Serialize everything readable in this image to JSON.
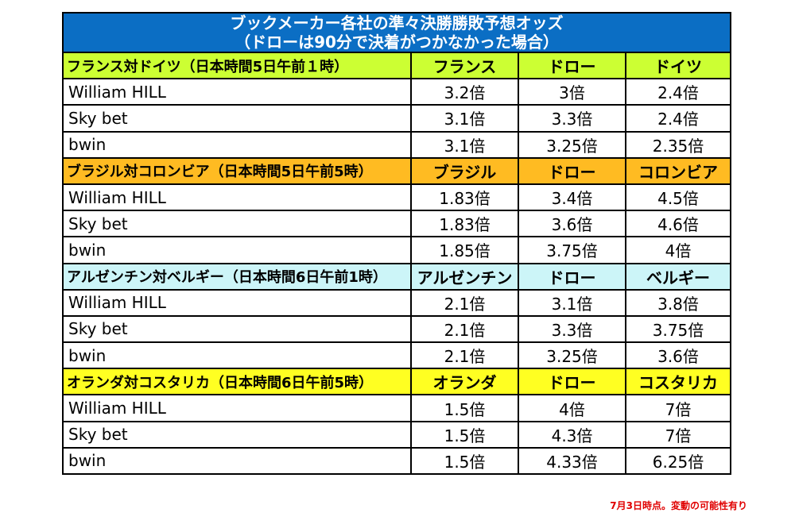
{
  "title_line1": "ブックメーカー各社の準々決勝勝敗予想オッズ",
  "title_line2": "（ドローは90分で決着がつかなかった場合）",
  "matches": [
    {
      "title": "フランス対ドイツ（日本時間5日午前１時）",
      "team_a": "フランス",
      "draw": "ドロー",
      "team_b": "ドイツ",
      "header_color": "#ccff33",
      "rows": [
        {
          "bookmaker": "William HILL",
          "a": "3.2倍",
          "d": "3倍",
          "b": "2.4倍"
        },
        {
          "bookmaker": "Sky bet",
          "a": "3.1倍",
          "d": "3.3倍",
          "b": "2.4倍"
        },
        {
          "bookmaker": "bwin",
          "a": "3.1倍",
          "d": "3.25倍",
          "b": "2.35倍"
        }
      ]
    },
    {
      "title": "ブラジル対コロンビア（日本時間5日午前5時）",
      "team_a": "ブラジル",
      "draw": "ドロー",
      "team_b": "コロンビア",
      "header_color": "#ffbb22",
      "rows": [
        {
          "bookmaker": "William HILL",
          "a": "1.83倍",
          "d": "3.4倍",
          "b": "4.5倍"
        },
        {
          "bookmaker": "Sky bet",
          "a": "1.83倍",
          "d": "3.6倍",
          "b": "4.6倍"
        },
        {
          "bookmaker": "bwin",
          "a": "1.85倍",
          "d": "3.75倍",
          "b": "4倍"
        }
      ]
    },
    {
      "title": "アルゼンチン対ベルギー（日本時間6日午前1時）",
      "team_a": "アルゼンチン",
      "draw": "ドロー",
      "team_b": "ベルギー",
      "header_color": "#ccf5f8",
      "rows": [
        {
          "bookmaker": "William HILL",
          "a": "2.1倍",
          "d": "3.1倍",
          "b": "3.8倍"
        },
        {
          "bookmaker": "Sky bet",
          "a": "2.1倍",
          "d": "3.3倍",
          "b": "3.75倍"
        },
        {
          "bookmaker": "bwin",
          "a": "2.1倍",
          "d": "3.25倍",
          "b": "3.6倍"
        }
      ]
    },
    {
      "title": "オランダ対コスタリカ（日本時間6日午前5時）",
      "team_a": "オランダ",
      "draw": "ドロー",
      "team_b": "コスタリカ",
      "header_color": "#ffff22",
      "rows": [
        {
          "bookmaker": "William HILL",
          "a": "1.5倍",
          "d": "4倍",
          "b": "7倍"
        },
        {
          "bookmaker": "Sky bet",
          "a": "1.5倍",
          "d": "4.3倍",
          "b": "7倍"
        },
        {
          "bookmaker": "bwin",
          "a": "1.5倍",
          "d": "4.33倍",
          "b": "6.25倍"
        }
      ]
    }
  ],
  "footnote": "7月3日時点。変動の可能性有り"
}
